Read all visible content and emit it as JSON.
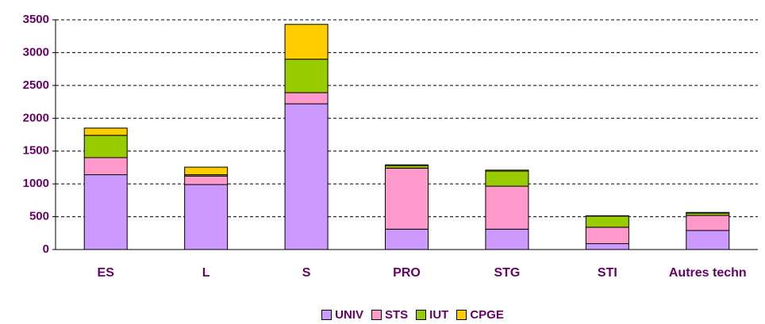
{
  "chart_data": {
    "type": "stacked_bar",
    "categories": [
      "ES",
      "L",
      "S",
      "PRO",
      "STG",
      "STI",
      "Autres techn"
    ],
    "series": [
      {
        "name": "UNIV",
        "color": "#cc99ff",
        "values": [
          1140,
          990,
          2220,
          310,
          310,
          90,
          290
        ]
      },
      {
        "name": "STS",
        "color": "#ff99cc",
        "values": [
          260,
          130,
          170,
          930,
          655,
          250,
          230
        ]
      },
      {
        "name": "IUT",
        "color": "#99cc00",
        "values": [
          340,
          20,
          510,
          40,
          230,
          170,
          35
        ]
      },
      {
        "name": "CPGE",
        "color": "#ffcc00",
        "values": [
          110,
          115,
          530,
          10,
          15,
          5,
          10
        ]
      }
    ],
    "ylim": [
      0,
      3500
    ],
    "yticks": [
      0,
      500,
      1000,
      1500,
      2000,
      2500,
      3000,
      3500
    ],
    "grid": true
  }
}
